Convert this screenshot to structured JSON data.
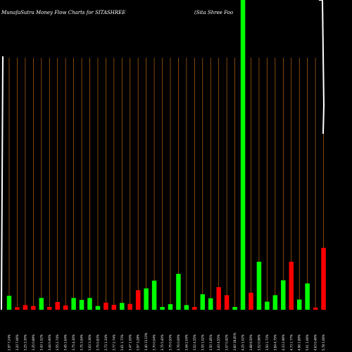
{
  "header": {
    "title": "MunafaSutra  Money Flow  Charts for SITASHREE",
    "subtitle": "(Sita  Shree   Foo"
  },
  "chart_data": {
    "type": "bar",
    "title": "MunafaSutra  Money Flow  Charts for SITASHREE",
    "subtitle": "(Sita  Shree   Foo",
    "xlabel": "",
    "ylabel": "",
    "grid": true,
    "up_color": "#00ff00",
    "down_color": "#ff0000",
    "grid_color": "#b8650e",
    "price_line_color": "#ffffff",
    "ylim": [
      0,
      100
    ],
    "categories": [
      "2.97 7.24%",
      "3.20 7.06%",
      "3.25 3.30%",
      "3.35 0.89%",
      "3.43 1.52%",
      "3.44 0.90%",
      "3.55 2.74%",
      "3.45 1.64%",
      "3.75 4.30%",
      "3.75 3.94%",
      "3.63 3.36%",
      "3.75 0.83%",
      "3.73 1.34%",
      "3.77 2.74%",
      "3.61 1.73%",
      "3.47 1.00%",
      "3.97 3.28%",
      "3.40 13.10%",
      "3.70 0.04%",
      "3.75 5.40%",
      "3.75 0.93%",
      "3.76 0.00%",
      "3.44 2.04%",
      "3.52 4.55%",
      "3.55 1.02%",
      "3.50 1.85%",
      "3.43 4.55%",
      "3.57 0.92%",
      "3.60 18.81%",
      "4.25 1.02%",
      "3.88 8.50%",
      "3.52 0.96%",
      "3.50 1.73%",
      "3.84 4.75%",
      "4.33 2.96%",
      "4.73 1.77%",
      "4.96 1.89%",
      "5.01 1.06%",
      "4.63 0.46%",
      "5.78 1.06%"
    ],
    "values": [
      4.5,
      0.8,
      1.5,
      1.2,
      3.8,
      0.9,
      2.5,
      1.4,
      3.8,
      3.2,
      3.8,
      1.2,
      2.3,
      1.6,
      2.2,
      1.9,
      6.3,
      6.9,
      9.4,
      0.9,
      1.8,
      11.6,
      1.5,
      0.9,
      5.0,
      3.7,
      7.3,
      4.7,
      0.9,
      100,
      5.5,
      15.5,
      2.6,
      4.7,
      9.5,
      15.5,
      3.3,
      8.5,
      0.7,
      20.0
    ],
    "directions": [
      "up",
      "down",
      "down",
      "down",
      "up",
      "down",
      "down",
      "down",
      "up",
      "up",
      "up",
      "up",
      "down",
      "down",
      "up",
      "down",
      "down",
      "up",
      "up",
      "up",
      "up",
      "up",
      "up",
      "down",
      "up",
      "up",
      "down",
      "down",
      "up",
      "up",
      "down",
      "up",
      "up",
      "up",
      "up",
      "down",
      "up",
      "up",
      "down",
      "down"
    ],
    "price_trace": [
      100,
      99,
      99,
      98,
      97,
      97,
      96,
      96,
      96,
      95,
      95,
      95,
      94,
      94,
      94,
      93,
      93,
      93,
      92,
      92,
      92,
      91,
      91,
      91,
      90,
      90,
      90,
      89,
      89,
      100,
      100,
      100,
      100,
      100,
      100,
      100,
      100,
      100,
      100,
      69
    ]
  }
}
